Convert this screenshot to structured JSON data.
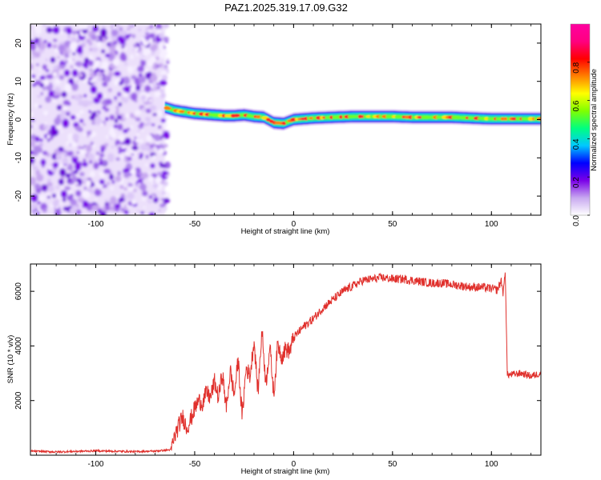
{
  "title": "PAZ1.2025.319.17.09.G32",
  "chart_data": [
    {
      "type": "heatmap",
      "xlabel": "Height of straight line (km)",
      "ylabel": "Frequency (Hz)",
      "xlim": [
        -133,
        125
      ],
      "ylim": [
        -25,
        25
      ],
      "xticks": [
        -100,
        -50,
        0,
        50,
        100
      ],
      "yticks": [
        -20,
        -10,
        0,
        10,
        20
      ],
      "noise_region_km": [
        -133,
        -65
      ],
      "ridge": {
        "x": [
          -65,
          -60,
          -55,
          -50,
          -45,
          -40,
          -35,
          -30,
          -25,
          -20,
          -15,
          -10,
          -5,
          0,
          10,
          20,
          30,
          40,
          50,
          60,
          70,
          80,
          90,
          100,
          110,
          120,
          125
        ],
        "y": [
          3.2,
          2.4,
          2.0,
          1.6,
          1.4,
          1.2,
          1.0,
          1.0,
          1.2,
          0.8,
          0.6,
          -0.8,
          -1.0,
          0.0,
          0.4,
          0.6,
          0.8,
          0.8,
          0.8,
          0.6,
          0.6,
          0.6,
          0.4,
          0.2,
          0.2,
          0.2,
          0.2
        ]
      },
      "colorbar": {
        "label": "Normalized spectral amplitude",
        "min": 0.0,
        "max": 1.0,
        "ticks": [
          "0.0",
          "0.2",
          "0.4",
          "0.6",
          "0.8"
        ],
        "colors": [
          "#ffffff",
          "#c8a8f0",
          "#7a00e8",
          "#0000ff",
          "#00c8ff",
          "#00ff80",
          "#80ff00",
          "#ffff00",
          "#ff8000",
          "#ff0000",
          "#ff0080",
          "#ff00a0"
        ]
      }
    },
    {
      "type": "line",
      "xlabel": "Height of straight line (km)",
      "ylabel": "SNR (10 * v/v)",
      "xlim": [
        -133,
        125
      ],
      "ylim": [
        0,
        7000
      ],
      "xticks": [
        -100,
        -50,
        0,
        50,
        100
      ],
      "yticks": [
        2000,
        4000,
        6000
      ],
      "color": "#e0302c",
      "series": [
        {
          "name": "SNR",
          "x": [
            -133,
            -120,
            -100,
            -80,
            -70,
            -62,
            -60,
            -58,
            -56,
            -54,
            -52,
            -50,
            -48,
            -46,
            -44,
            -42,
            -40,
            -38,
            -36,
            -34,
            -32,
            -30,
            -28,
            -26,
            -24,
            -22,
            -20,
            -18,
            -16,
            -14,
            -12,
            -10,
            -8,
            -6,
            -4,
            -2,
            0,
            5,
            10,
            15,
            20,
            25,
            30,
            35,
            40,
            45,
            50,
            55,
            60,
            65,
            70,
            75,
            80,
            85,
            90,
            95,
            100,
            103,
            105,
            106,
            107,
            108,
            110,
            115,
            120,
            125
          ],
          "y": [
            150,
            120,
            160,
            130,
            150,
            200,
            700,
            1100,
            1400,
            1000,
            1300,
            1700,
            2000,
            1900,
            2300,
            2100,
            2700,
            2100,
            3000,
            1700,
            3100,
            2200,
            3500,
            1400,
            3200,
            2900,
            4200,
            2300,
            4600,
            2600,
            4000,
            2200,
            4100,
            3600,
            3900,
            3800,
            4300,
            4700,
            5000,
            5400,
            5700,
            6000,
            6200,
            6400,
            6450,
            6500,
            6450,
            6450,
            6400,
            6350,
            6300,
            6300,
            6250,
            6200,
            6150,
            6150,
            6100,
            6050,
            6400,
            5900,
            6800,
            2950,
            2950,
            3000,
            2900,
            3000
          ]
        }
      ]
    }
  ]
}
